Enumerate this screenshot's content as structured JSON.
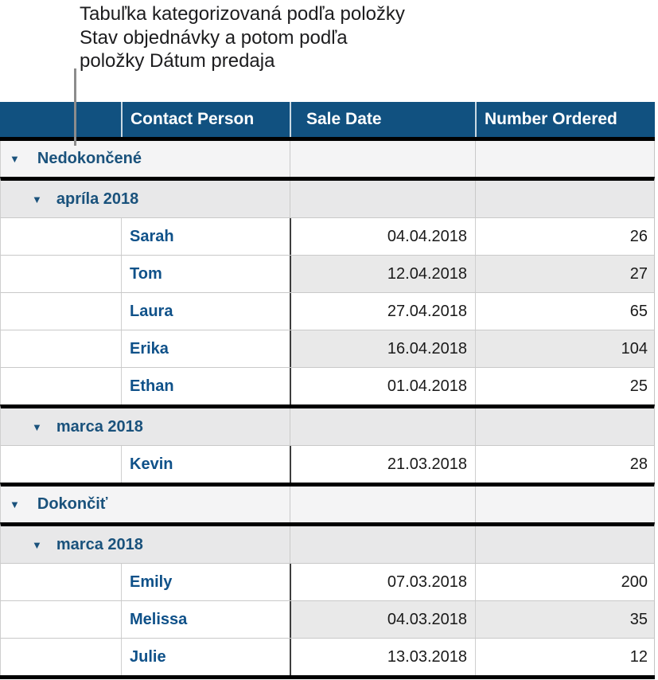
{
  "caption": {
    "text": "Tabuľka kategorizovaná podľa položky\nStav objednávky a potom podľa\npoložky Dátum predaja"
  },
  "colors": {
    "header_bg": "#115180",
    "header_text": "#ffffff",
    "category_text": "#1a527c",
    "name_text": "#0f5189",
    "cell_text": "#1a1a1a",
    "band_bg": "#e9e9e9",
    "category_level1_bg": "#f4f4f5",
    "category_level2_bg": "#e8e8e9",
    "thick_border": "#000000",
    "thin_border": "#c9c9c9",
    "dark_divider": "#3d3d3d",
    "callout_line": "#8c8c8c"
  },
  "table": {
    "disclosure_icon": "▼",
    "columns": [
      {
        "label": ""
      },
      {
        "label": "Contact Person"
      },
      {
        "label": "Sale Date"
      },
      {
        "label": "Number Ordered"
      }
    ],
    "rows": [
      {
        "type": "category",
        "level": 1,
        "label": "Nedokončené"
      },
      {
        "type": "category",
        "level": 2,
        "label": "apríla 2018"
      },
      {
        "type": "data",
        "name": "Sarah",
        "date": "04.04.2018",
        "number": "26",
        "banded": false
      },
      {
        "type": "data",
        "name": "Tom",
        "date": "12.04.2018",
        "number": "27",
        "banded": true
      },
      {
        "type": "data",
        "name": "Laura",
        "date": "27.04.2018",
        "number": "65",
        "banded": false
      },
      {
        "type": "data",
        "name": "Erika",
        "date": "16.04.2018",
        "number": "104",
        "banded": true
      },
      {
        "type": "data",
        "name": "Ethan",
        "date": "01.04.2018",
        "number": "25",
        "banded": false
      },
      {
        "type": "category",
        "level": 2,
        "label": "marca 2018"
      },
      {
        "type": "data",
        "name": "Kevin",
        "date": "21.03.2018",
        "number": "28",
        "banded": false
      },
      {
        "type": "category",
        "level": 1,
        "label": "Dokončiť"
      },
      {
        "type": "category",
        "level": 2,
        "label": "marca 2018"
      },
      {
        "type": "data",
        "name": "Emily",
        "date": "07.03.2018",
        "number": "200",
        "banded": false
      },
      {
        "type": "data",
        "name": "Melissa",
        "date": "04.03.2018",
        "number": "35",
        "banded": true
      },
      {
        "type": "data",
        "name": "Julie",
        "date": "13.03.2018",
        "number": "12",
        "banded": false
      }
    ]
  }
}
